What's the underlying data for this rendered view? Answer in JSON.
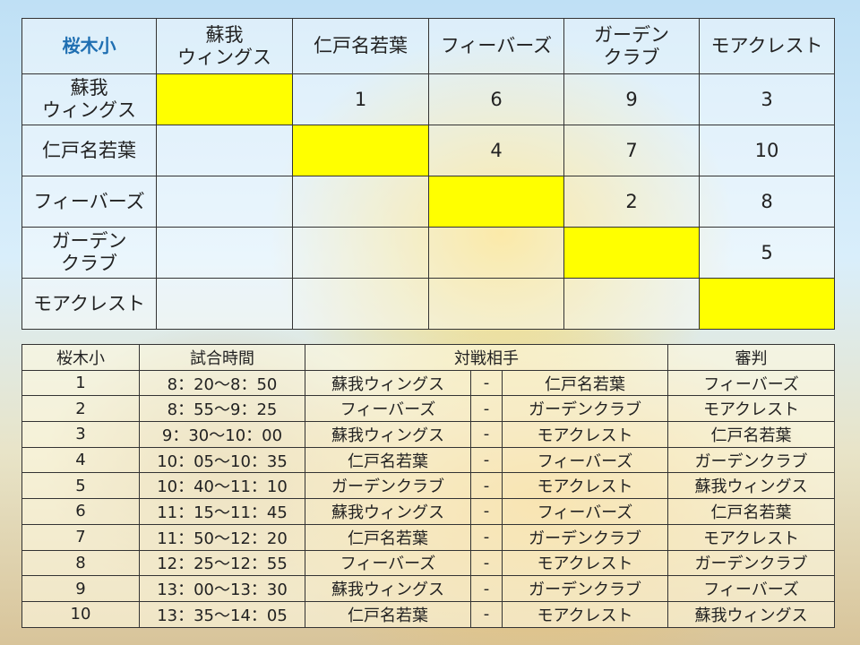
{
  "matrix": {
    "corner": "桜木小",
    "teams": [
      "蘇我\nウィングス",
      "仁戸名若葉",
      "フィーバーズ",
      "ガーデン\nクラブ",
      "モアクレスト"
    ],
    "cells": [
      [
        "",
        "1",
        "6",
        "9",
        "3"
      ],
      [
        "",
        "",
        "4",
        "7",
        "10"
      ],
      [
        "",
        "",
        "",
        "2",
        "8"
      ],
      [
        "",
        "",
        "",
        "",
        "5"
      ],
      [
        "",
        "",
        "",
        "",
        ""
      ]
    ],
    "highlight_color": "#ffff00"
  },
  "schedule": {
    "headers": {
      "num": "桜木小",
      "time": "試合時間",
      "match": "対戦相手",
      "referee": "審判"
    },
    "separator": "-",
    "rows": [
      {
        "num": "1",
        "time": "8：20～8：50",
        "home": "蘇我ウィングス",
        "away": "仁戸名若葉",
        "referee": "フィーバーズ"
      },
      {
        "num": "2",
        "time": "8：55～9：25",
        "home": "フィーバーズ",
        "away": "ガーデンクラブ",
        "referee": "モアクレスト"
      },
      {
        "num": "3",
        "time": "9：30～10：00",
        "home": "蘇我ウィングス",
        "away": "モアクレスト",
        "referee": "仁戸名若葉"
      },
      {
        "num": "4",
        "time": "10：05～10：35",
        "home": "仁戸名若葉",
        "away": "フィーバーズ",
        "referee": "ガーデンクラブ"
      },
      {
        "num": "5",
        "time": "10：40～11：10",
        "home": "ガーデンクラブ",
        "away": "モアクレスト",
        "referee": "蘇我ウィングス"
      },
      {
        "num": "6",
        "time": "11：15～11：45",
        "home": "蘇我ウィングス",
        "away": "フィーバーズ",
        "referee": "仁戸名若葉"
      },
      {
        "num": "7",
        "time": "11：50～12：20",
        "home": "仁戸名若葉",
        "away": "ガーデンクラブ",
        "referee": "モアクレスト"
      },
      {
        "num": "8",
        "time": "12：25～12：55",
        "home": "フィーバーズ",
        "away": "モアクレスト",
        "referee": "ガーデンクラブ"
      },
      {
        "num": "9",
        "time": "13：00～13：30",
        "home": "蘇我ウィングス",
        "away": "ガーデンクラブ",
        "referee": "フィーバーズ"
      },
      {
        "num": "10",
        "time": "13：35～14：05",
        "home": "仁戸名若葉",
        "away": "モアクレスト",
        "referee": "蘇我ウィングス"
      }
    ]
  }
}
